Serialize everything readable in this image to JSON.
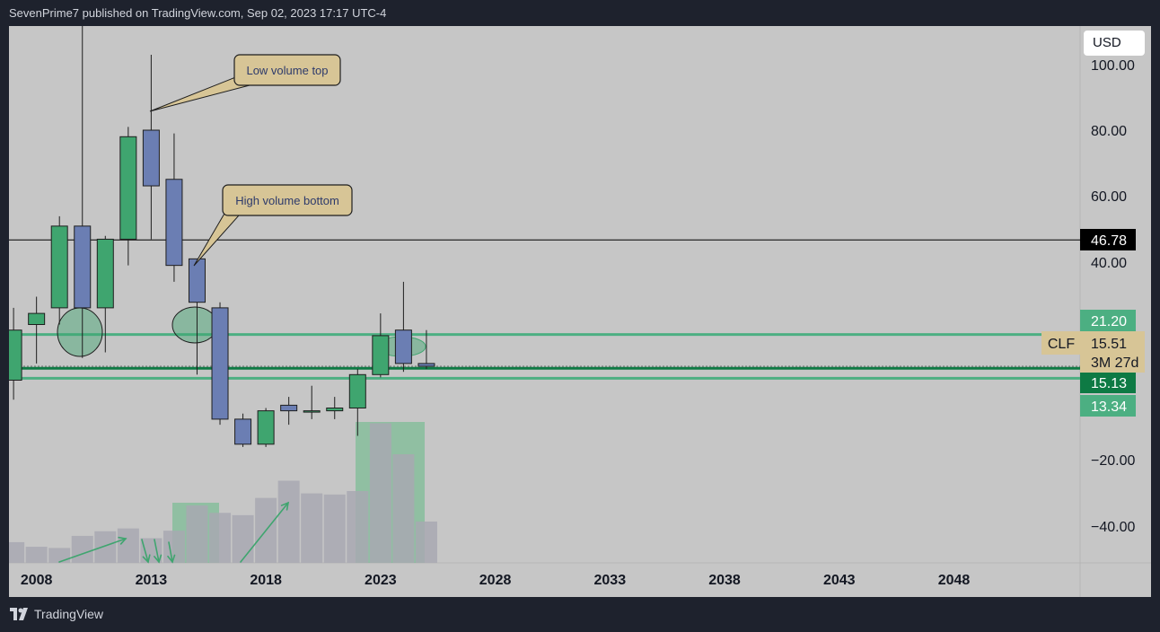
{
  "header": {
    "published_text": "SevenPrime7 published on TradingView.com, Sep 02, 2023 17:17 UTC-4"
  },
  "footer": {
    "brand": "TradingView"
  },
  "toolbar": {
    "currency_label": "USD"
  },
  "colors": {
    "up": "#3fa56f",
    "down": "#6b7eb3",
    "outline": "#1e1e1e",
    "support": "#4caf82",
    "volume": "#a8a8b2",
    "volume_highlight": "#6dba8b",
    "annotation_bg": "#d7c596",
    "plot_bg": "#c6c6c6"
  },
  "chart_data": {
    "type": "candlestick",
    "symbol": "CLF",
    "countdown": "3M 27d",
    "x_axis": {
      "ticks": [
        2008,
        2013,
        2018,
        2023,
        2028,
        2033,
        2038,
        2043,
        2048
      ],
      "range": [
        2006.8,
        2053.5
      ]
    },
    "y_axis": {
      "ticks": [
        "100.00",
        "80.00",
        "60.00",
        "40.00",
        "−20.00",
        "−40.00"
      ]
    },
    "candles": [
      {
        "t": 2007.0,
        "o": 13.0,
        "h": 26.0,
        "l": 9.5,
        "c": 22.0
      },
      {
        "t": 2008.0,
        "o": 23.0,
        "h": 28.0,
        "l": 16.0,
        "c": 25.0
      },
      {
        "t": 2009.0,
        "o": 26.0,
        "h": 54.0,
        "l": 23.0,
        "c": 51.0
      },
      {
        "t": 2010.0,
        "o": 51.0,
        "h": 130.0,
        "l": 17.0,
        "c": 26.0
      },
      {
        "t": 2011.0,
        "o": 26.0,
        "h": 48.0,
        "l": 18.0,
        "c": 47.0
      },
      {
        "t": 2012.0,
        "o": 47.0,
        "h": 81.0,
        "l": 39.0,
        "c": 78.0
      },
      {
        "t": 2013.0,
        "o": 80.0,
        "h": 103.0,
        "l": 47.0,
        "c": 63.0
      },
      {
        "t": 2014.0,
        "o": 65.0,
        "h": 79.0,
        "l": 34.0,
        "c": 39.0
      },
      {
        "t": 2015.0,
        "o": 41.0,
        "h": 40.0,
        "l": 14.0,
        "c": 27.0
      },
      {
        "t": 2016.0,
        "o": 26.0,
        "h": 27.0,
        "l": 5.0,
        "c": 6.0
      },
      {
        "t": 2017.0,
        "o": 6.0,
        "h": 7.0,
        "l": 1.0,
        "c": 1.5
      },
      {
        "t": 2018.0,
        "o": 1.5,
        "h": 8.0,
        "l": 1.0,
        "c": 7.5
      },
      {
        "t": 2019.0,
        "o": 8.5,
        "h": 10.0,
        "l": 5.0,
        "c": 7.5
      },
      {
        "t": 2020.0,
        "o": 7.5,
        "h": 12.0,
        "l": 6.0,
        "c": 7.5
      },
      {
        "t": 2021.0,
        "o": 7.5,
        "h": 10.0,
        "l": 6.0,
        "c": 8.0
      },
      {
        "t": 2022.0,
        "o": 8.0,
        "h": 15.0,
        "l": 3.0,
        "c": 14.0
      },
      {
        "t": 2023.0,
        "o": 14.0,
        "h": 25.0,
        "l": 13.5,
        "c": 21.0
      },
      {
        "t": 2024.0,
        "o": 22.0,
        "h": 34.0,
        "l": 14.5,
        "c": 16.0
      },
      {
        "t": 2025.0,
        "o": 16.0,
        "h": 22.0,
        "l": 15.0,
        "c": 15.5
      }
    ],
    "volume_bars": [
      {
        "t": 2007.0,
        "v": 0.36
      },
      {
        "t": 2008.0,
        "v": 0.28
      },
      {
        "t": 2009.0,
        "v": 0.26
      },
      {
        "t": 2010.0,
        "v": 0.47
      },
      {
        "t": 2011.0,
        "v": 0.55
      },
      {
        "t": 2012.0,
        "v": 0.6
      },
      {
        "t": 2013.0,
        "v": 0.43
      },
      {
        "t": 2014.0,
        "v": 0.56
      },
      {
        "t": 2015.0,
        "v": 1.0
      },
      {
        "t": 2016.0,
        "v": 0.87
      },
      {
        "t": 2017.0,
        "v": 0.83
      },
      {
        "t": 2018.0,
        "v": 1.13
      },
      {
        "t": 2019.0,
        "v": 1.43
      },
      {
        "t": 2020.0,
        "v": 1.21
      },
      {
        "t": 2021.0,
        "v": 1.19
      },
      {
        "t": 2022.0,
        "v": 1.25
      },
      {
        "t": 2023.0,
        "v": 2.43
      },
      {
        "t": 2024.0,
        "v": 1.89
      },
      {
        "t": 2025.0,
        "v": 0.72
      }
    ],
    "horizontal_lines": [
      {
        "label": "46.78",
        "value": 46.78,
        "color": "#000000"
      },
      {
        "label": "21.20",
        "value": 21.2,
        "color": "#4caf82"
      },
      {
        "label": "15.13",
        "value": 15.13,
        "color": "#0e7a44"
      },
      {
        "label": "13.34",
        "value": 13.34,
        "color": "#4caf82"
      }
    ],
    "last_price": {
      "label": "15.51",
      "value": 15.51
    },
    "annotations": [
      {
        "text": "Low volume top"
      },
      {
        "text": "High volume bottom"
      }
    ]
  }
}
